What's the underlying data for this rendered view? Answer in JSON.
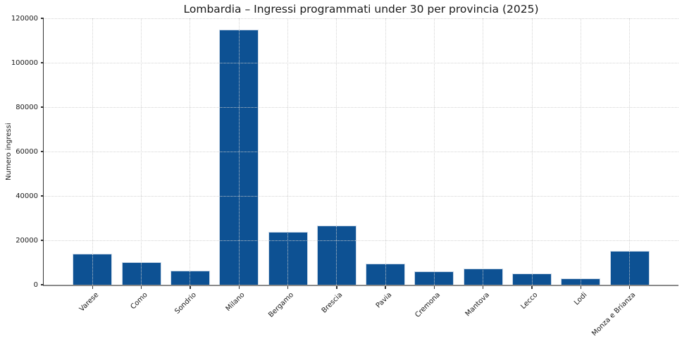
{
  "chart_data": {
    "type": "bar",
    "title": "Lombardia – Ingressi programmati under 30 per provincia (2025)",
    "ylabel": "Numero ingressi",
    "xlabel": "",
    "categories": [
      "Varese",
      "Como",
      "Sondrio",
      "Milano",
      "Bergamo",
      "Brescia",
      "Pavia",
      "Cremona",
      "Mantova",
      "Lecco",
      "Lodi",
      "Monza e Brianza"
    ],
    "values": [
      14000,
      10300,
      6300,
      115000,
      23700,
      26700,
      9500,
      6000,
      7300,
      5000,
      2900,
      15200
    ],
    "ylim": [
      0,
      120000
    ],
    "yticks": [
      0,
      20000,
      40000,
      60000,
      80000,
      100000,
      120000
    ],
    "ytick_labels": [
      "0",
      "20000",
      "40000",
      "60000",
      "80000",
      "100000",
      "120000"
    ],
    "xtick_rotation_deg": 45,
    "grid": {
      "visible": true,
      "style": "dotted",
      "axes": "both",
      "color": "#d0d0d0",
      "above_bars": true
    },
    "legend": {
      "visible": false
    },
    "spines": {
      "top": false,
      "right": false,
      "left": true,
      "bottom": true
    },
    "bar_color": "#0d5193",
    "bar_edge_color": "#ccd9e8",
    "background_color": "#ffffff"
  }
}
